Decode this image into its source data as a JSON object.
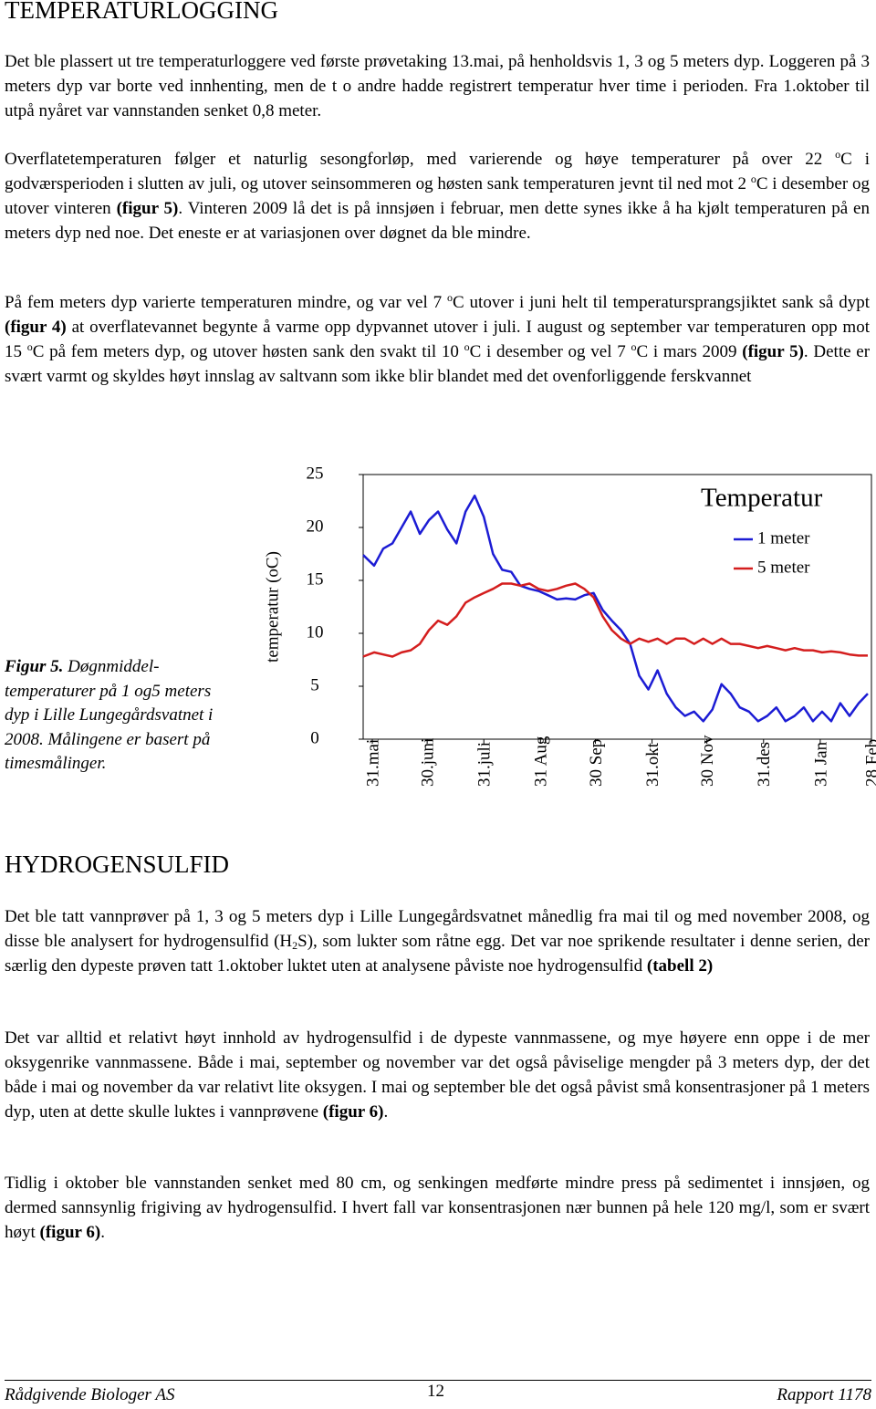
{
  "header": {
    "title": "TEMPERATURLOGGING"
  },
  "paragraphs": [
    [
      "Det ble plassert ut tre temperaturloggere ved første prøvetaking 13.mai, på henholdsvis 1, 3 og 5 meters dyp. Loggeren på 3 meters dyp var borte ved innhenting, men de t o andre hadde registrert temperatur hver time i perioden. Fra 1.oktober til utpå nyåret var vannstanden senket 0,8 meter."
    ],
    [
      "Overflatetemperaturen følger et naturlig sesongforløp, med varierende og høye temperaturer på over 22 ",
      "o",
      "C i godværsperioden i slutten av juli, og utover seinsommeren og høsten sank temperaturen jevnt til ned mot 2 ",
      "o",
      "C i desember og utover vinteren ",
      "(figur 5)",
      ". Vinteren 2009 lå det is på innsjøen i februar, men dette synes ikke å ha kjølt temperaturen på en meters dyp ned noe. Det eneste er at variasjonen over døgnet da ble mindre."
    ],
    [
      "På fem meters dyp varierte temperaturen mindre, og var vel 7 ",
      "o",
      "C utover i juni helt til temperatursprangsjiktet sank så dypt ",
      "(figur 4)",
      " at overflatevannet begynte å varme opp dypvannet utover i juli. I august og september var temperaturen opp mot 15 ",
      "o",
      "C på fem meters dyp, og utover høsten sank den svakt til 10 ",
      "o",
      "C i desember og vel 7 ",
      "o",
      "C i mars 2009 ",
      "(figur 5)",
      ". Dette er svært varmt og skyldes høyt innslag av saltvann som ikke blir blandet med det ovenforliggende ferskvannet"
    ]
  ],
  "chart_data": {
    "type": "line",
    "ylabel": "temperatur (oC)",
    "legend_title": "Temperatur",
    "legend": "upper right",
    "ylim": [
      0,
      25
    ],
    "yticks": [
      0,
      5,
      10,
      15,
      20,
      25
    ],
    "xlim": [
      -5,
      273
    ],
    "xticks": [
      {
        "value": 0,
        "label": "31.mai"
      },
      {
        "value": 30,
        "label": "30.juni"
      },
      {
        "value": 61,
        "label": "31.juli"
      },
      {
        "value": 92,
        "label": "31 Aug"
      },
      {
        "value": 122,
        "label": "30 Sep"
      },
      {
        "value": 153,
        "label": "31.okt"
      },
      {
        "value": 183,
        "label": "30 Nov"
      },
      {
        "value": 214,
        "label": "31.des"
      },
      {
        "value": 245,
        "label": "31 Jan"
      },
      {
        "value": 273,
        "label": "28 Feb"
      }
    ],
    "x": [
      -5,
      1,
      6,
      11,
      16,
      21,
      26,
      31,
      36,
      41,
      46,
      51,
      56,
      61,
      66,
      71,
      76,
      81,
      86,
      91,
      96,
      101,
      106,
      111,
      116,
      121,
      126,
      131,
      136,
      141,
      146,
      151,
      156,
      161,
      166,
      171,
      176,
      181,
      186,
      191,
      196,
      201,
      206,
      211,
      216,
      221,
      226,
      231,
      236,
      241,
      246,
      251,
      256,
      261,
      266,
      271
    ],
    "series": [
      {
        "name": "1 meter",
        "color": "#1c1cd4",
        "values": [
          17.4,
          16.4,
          18,
          18.5,
          20,
          21.5,
          19.4,
          20.7,
          21.5,
          19.8,
          18.5,
          21.5,
          23,
          21,
          17.5,
          16,
          15.8,
          14.5,
          14.2,
          14,
          13.6,
          13.2,
          13.3,
          13.2,
          13.6,
          13.8,
          12.2,
          11.2,
          10.3,
          9,
          6,
          4.7,
          6.5,
          4.3,
          3,
          2.2,
          2.6,
          1.7,
          2.8,
          5.2,
          4.3,
          3,
          2.6,
          1.7,
          2.2,
          3,
          1.7,
          2.2,
          3,
          1.7,
          2.6,
          1.7,
          3.4,
          2.2,
          3.4,
          4.3
        ]
      },
      {
        "name": "5 meter",
        "color": "#d41e1e",
        "values": [
          7.8,
          8.2,
          8,
          7.8,
          8.2,
          8.4,
          9,
          10.3,
          11.2,
          10.8,
          11.6,
          12.9,
          13.4,
          13.8,
          14.2,
          14.7,
          14.7,
          14.5,
          14.7,
          14.2,
          14,
          14.2,
          14.5,
          14.7,
          14.2,
          13.4,
          11.6,
          10.3,
          9.5,
          9,
          9.5,
          9.2,
          9.5,
          9,
          9.5,
          9.5,
          9,
          9.5,
          9,
          9.5,
          9,
          9,
          8.8,
          8.6,
          8.8,
          8.6,
          8.4,
          8.6,
          8.4,
          8.4,
          8.2,
          8.3,
          8.2,
          8,
          7.9,
          7.9
        ]
      }
    ]
  },
  "caption": [
    "Figur 5.",
    " Døgnmiddel-temperaturer på 1 og5 meters dyp i Lille Lungegårdsvatnet i 2008. Målingene er basert på timesmålinger."
  ],
  "section": {
    "title": "HYDROGENSULFID"
  },
  "paragraphs2": [
    [
      "Det ble tatt vannprøver på 1, 3 og 5 meters dyp i Lille Lungegårdsvatnet månedlig fra mai til og med november 2008, og disse ble analysert for hydrogensulfid (H",
      "2",
      "S), som lukter som råtne egg. Det var noe sprikende resultater i denne serien, der særlig den dypeste prøven tatt 1.oktober luktet uten at analysene påviste noe hydrogensulfid ",
      "(tabell 2)"
    ],
    [
      "Det var alltid et relativt høyt innhold av hydrogensulfid i de dypeste vannmassene, og mye høyere enn oppe i de mer oksygenrike vannmassene. Både i mai, september og november var det også påviselige mengder på 3 meters dyp, der det både i mai og november da var relativt lite oksygen. I mai og september ble det også påvist små konsentrasjoner på 1 meters dyp, uten at dette skulle luktes i vannprøvene ",
      "(figur 6)",
      "."
    ],
    [
      "Tidlig i oktober ble vannstanden senket med 80 cm, og senkingen medførte mindre press på sedimentet i innsjøen, og dermed sannsynlig frigiving av hydrogensulfid. I hvert fall var konsentrasjonen nær bunnen på hele 120 mg/l, som er svært høyt ",
      "(figur 6)",
      "."
    ]
  ],
  "footer": {
    "left": "Rådgivende Biologer AS",
    "page": "12",
    "right": "Rapport 1178"
  }
}
